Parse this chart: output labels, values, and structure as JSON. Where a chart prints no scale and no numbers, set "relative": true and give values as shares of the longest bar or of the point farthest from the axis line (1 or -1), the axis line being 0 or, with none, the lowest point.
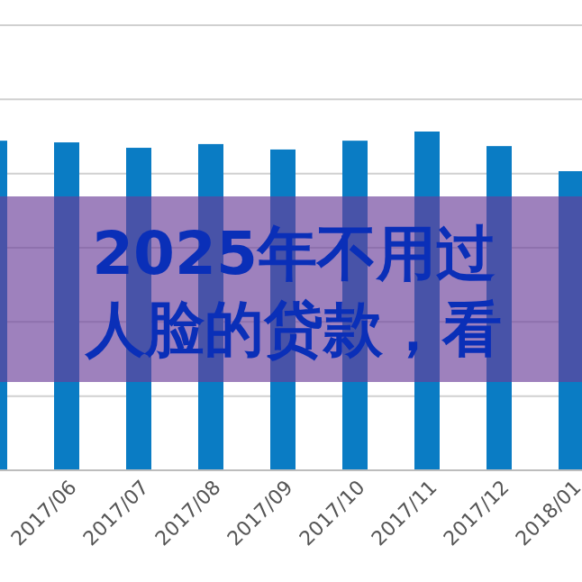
{
  "chart_data": {
    "type": "bar",
    "title": "2025年不用过人脸的贷款，看",
    "relative": true,
    "grid": "y",
    "categories": [
      null,
      "2017/06",
      "2017/07",
      "2017/08",
      "2017/09",
      "2017/10",
      "2017/11",
      "2017/12",
      "2018/01"
    ],
    "values": [
      0.973,
      0.968,
      0.952,
      0.963,
      0.947,
      0.973,
      1,
      0.957,
      0.883
    ],
    "color": "#0a7cc4"
  }
}
